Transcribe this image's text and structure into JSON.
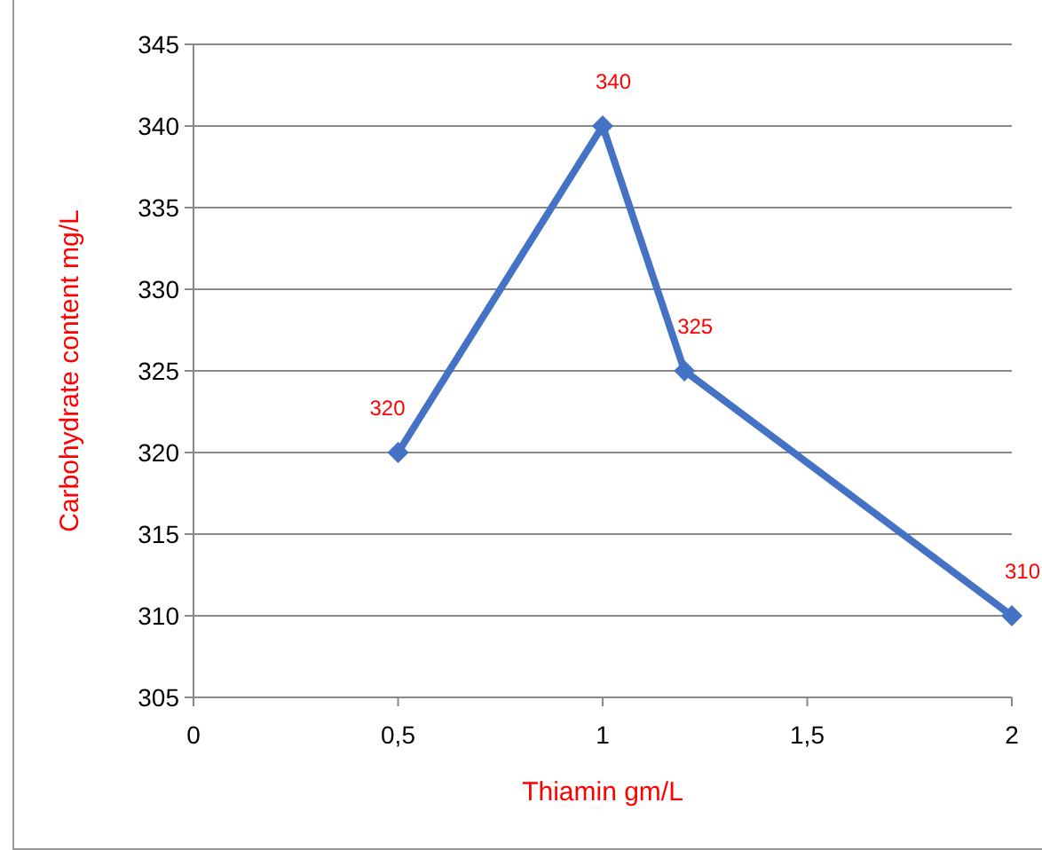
{
  "chart_data": {
    "type": "line",
    "xlabel": "Thiamin gm/L",
    "ylabel": "Carbohydrate content mg/L",
    "x": [
      0.5,
      1,
      1.2,
      2
    ],
    "series": [
      {
        "color": "#4472c4",
        "values": [
          320,
          340,
          325,
          310
        ]
      }
    ],
    "xlim": [
      0,
      2
    ],
    "xticks": [
      0,
      {
        "value": 0.5,
        "label": "0,5"
      },
      1,
      {
        "value": 1.5,
        "label": "1,5"
      },
      2
    ],
    "ylim": [
      305,
      345
    ],
    "yticks": [
      305,
      310,
      315,
      320,
      325,
      330,
      335,
      340,
      345
    ],
    "grid": "y",
    "marker": "diamond",
    "line_style": "solid",
    "data_labels": true
  }
}
